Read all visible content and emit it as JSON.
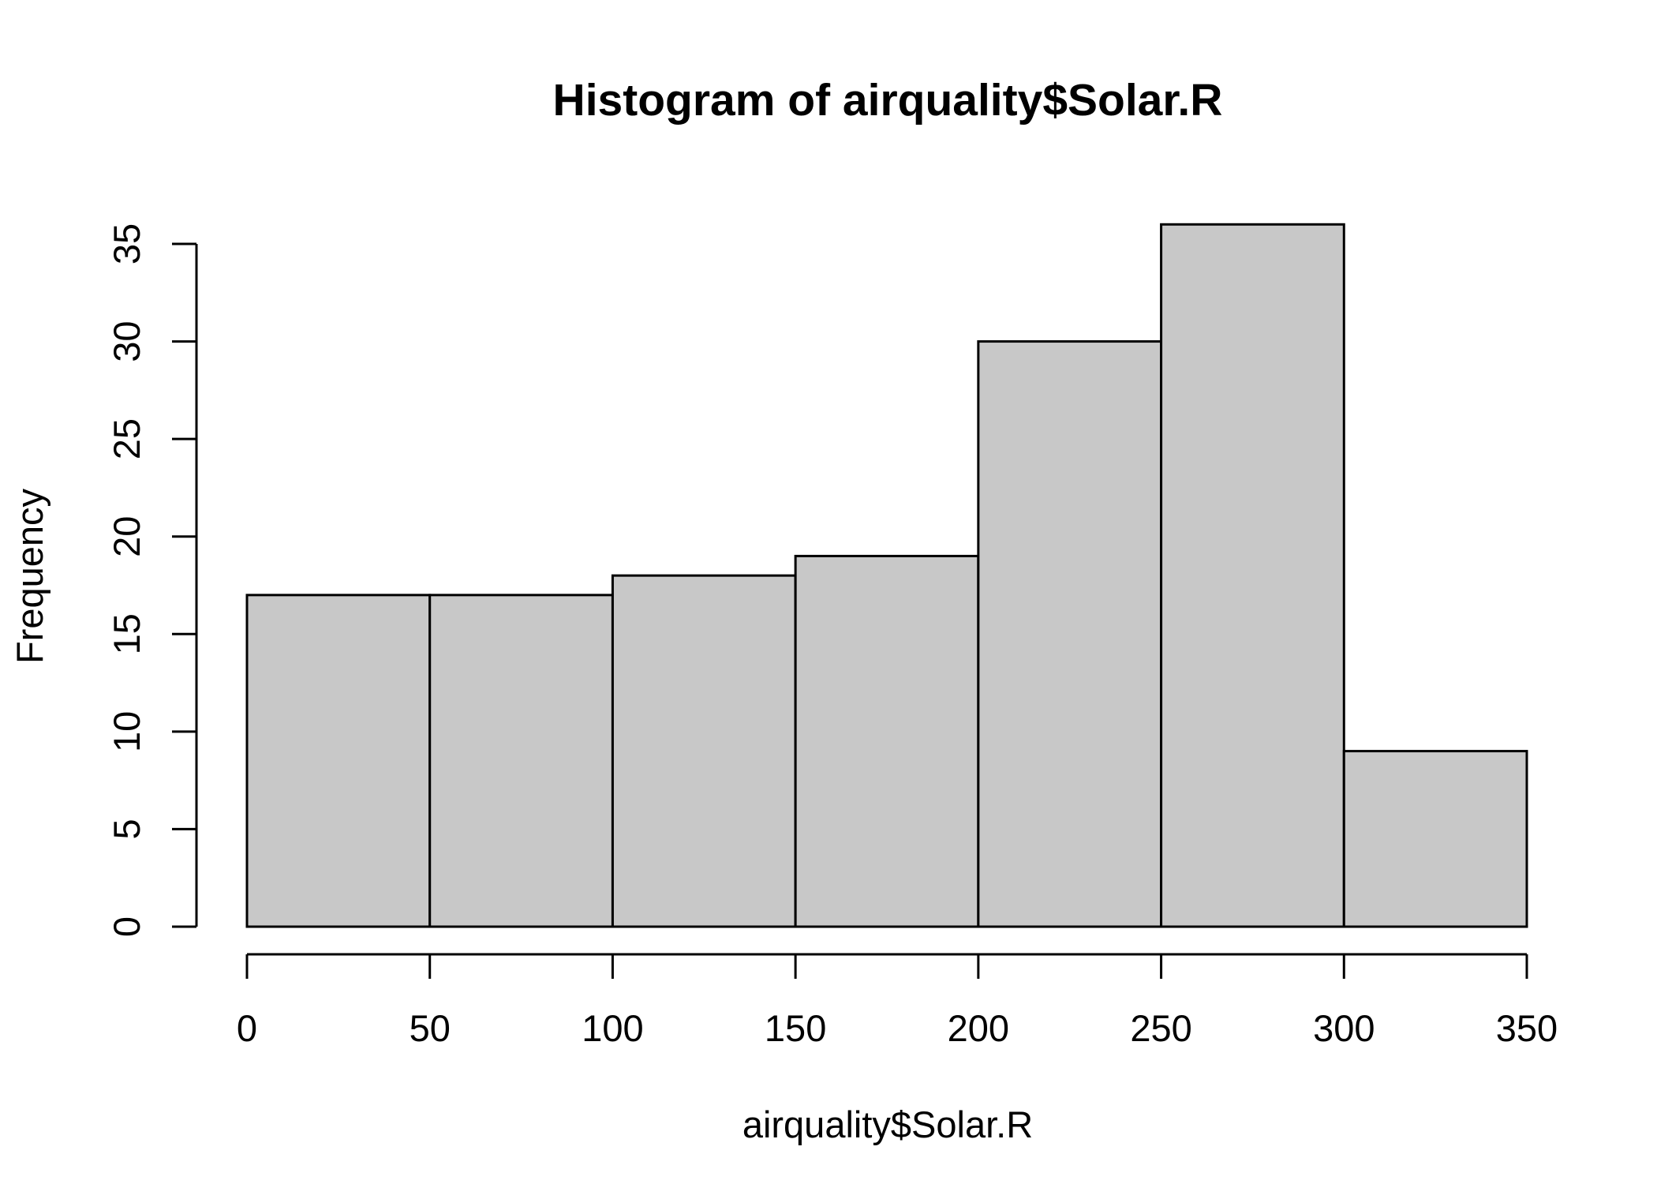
{
  "chart_data": {
    "type": "bar",
    "title": "Histogram of airquality$Solar.R",
    "xlabel": "airquality$Solar.R",
    "ylabel": "Frequency",
    "bins": [
      {
        "start": 0,
        "end": 50,
        "count": 17
      },
      {
        "start": 50,
        "end": 100,
        "count": 17
      },
      {
        "start": 100,
        "end": 150,
        "count": 18
      },
      {
        "start": 150,
        "end": 200,
        "count": 19
      },
      {
        "start": 200,
        "end": 250,
        "count": 30
      },
      {
        "start": 250,
        "end": 300,
        "count": 36
      },
      {
        "start": 300,
        "end": 350,
        "count": 9
      }
    ],
    "xlim": [
      0,
      350
    ],
    "ylim": [
      0,
      35
    ],
    "x_ticks": [
      "0",
      "50",
      "100",
      "150",
      "200",
      "250",
      "300",
      "350"
    ],
    "y_ticks": [
      "0",
      "5",
      "10",
      "15",
      "20",
      "25",
      "30",
      "35"
    ],
    "bar_color": "#c8c8c8",
    "grid": false,
    "legend": "none"
  }
}
